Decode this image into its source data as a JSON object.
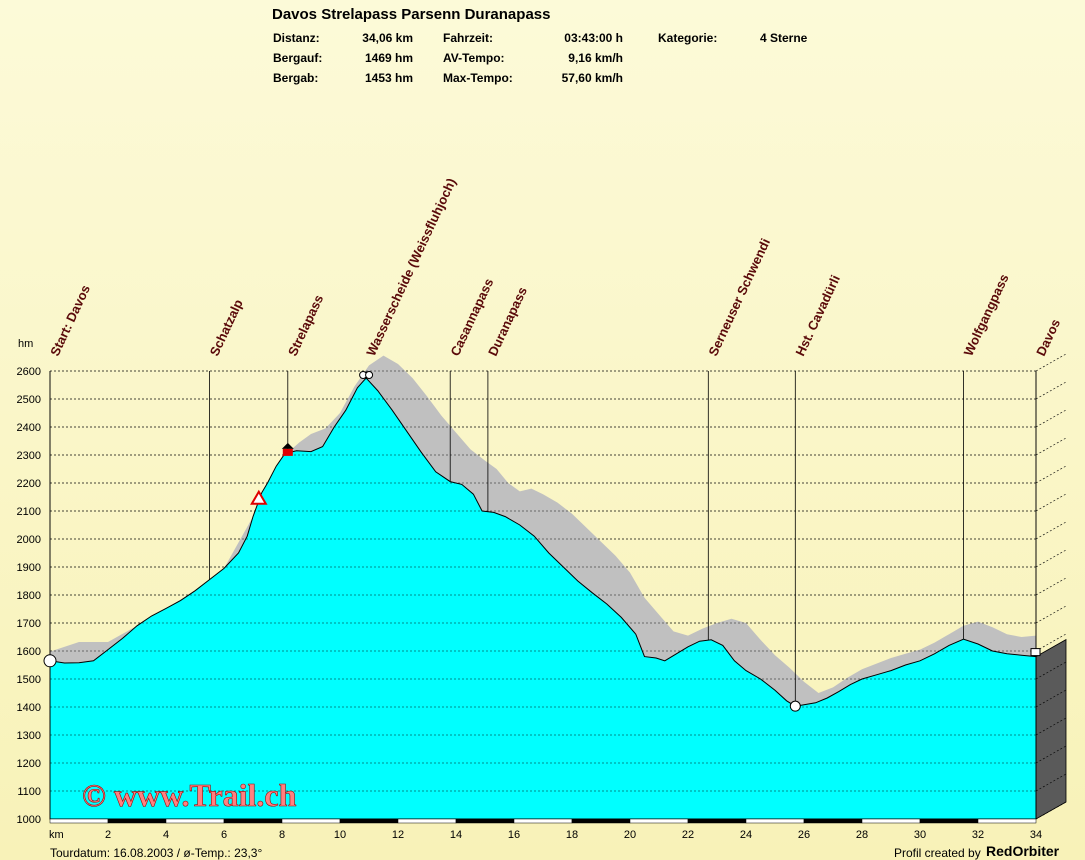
{
  "header": {
    "title": "Davos Strelapass Parsenn Duranapass",
    "stats": [
      {
        "label": "Distanz:",
        "value": "34,06 km"
      },
      {
        "label": "Bergauf:",
        "value": "1469 hm"
      },
      {
        "label": "Bergab:",
        "value": "1453 hm"
      },
      {
        "label": "Fahrzeit:",
        "value": "03:43:00 h"
      },
      {
        "label": "AV-Tempo:",
        "value": "9,16 km/h"
      },
      {
        "label": "Max-Tempo:",
        "value": "57,60 km/h"
      },
      {
        "label": "Kategorie:",
        "value": "4 Sterne"
      }
    ]
  },
  "footer": {
    "tour_info": "Tourdatum: 16.08.2003  /  ø-Temp.: 23,3°",
    "credit_prefix": "Profil created by",
    "credit_brand": "RedOrbiter",
    "watermark": "© www.Trail.ch"
  },
  "colors": {
    "fill": "#00ffff",
    "shadow": "#c0c0c0",
    "waypoint_text": "#5a0a0a",
    "watermark": "#ff8080"
  },
  "chart_data": {
    "type": "area",
    "ylabel": "hm",
    "xlabel": "km",
    "xlim": [
      0,
      34
    ],
    "ylim": [
      1000,
      2600
    ],
    "yticks": [
      1000,
      1100,
      1200,
      1300,
      1400,
      1500,
      1600,
      1700,
      1800,
      1900,
      2000,
      2100,
      2200,
      2300,
      2400,
      2500,
      2600
    ],
    "xticks": [
      2,
      4,
      6,
      8,
      10,
      12,
      14,
      16,
      18,
      20,
      22,
      24,
      26,
      28,
      30,
      32,
      34
    ],
    "grid": true,
    "profile": [
      [
        0,
        1565
      ],
      [
        0.5,
        1557
      ],
      [
        1.0,
        1558
      ],
      [
        1.5,
        1565
      ],
      [
        2.0,
        1605
      ],
      [
        2.5,
        1645
      ],
      [
        3.0,
        1690
      ],
      [
        3.5,
        1725
      ],
      [
        4.0,
        1752
      ],
      [
        4.5,
        1780
      ],
      [
        5.0,
        1815
      ],
      [
        5.5,
        1855
      ],
      [
        6.0,
        1895
      ],
      [
        6.5,
        1950
      ],
      [
        6.8,
        2010
      ],
      [
        7.0,
        2080
      ],
      [
        7.3,
        2165
      ],
      [
        7.5,
        2200
      ],
      [
        7.8,
        2260
      ],
      [
        8.1,
        2305
      ],
      [
        8.5,
        2315
      ],
      [
        9.0,
        2312
      ],
      [
        9.4,
        2330
      ],
      [
        9.8,
        2400
      ],
      [
        10.2,
        2460
      ],
      [
        10.6,
        2540
      ],
      [
        10.9,
        2575
      ],
      [
        11.3,
        2530
      ],
      [
        11.8,
        2460
      ],
      [
        12.3,
        2385
      ],
      [
        12.8,
        2310
      ],
      [
        13.3,
        2240
      ],
      [
        13.8,
        2205
      ],
      [
        14.2,
        2195
      ],
      [
        14.6,
        2160
      ],
      [
        14.9,
        2100
      ],
      [
        15.3,
        2095
      ],
      [
        15.7,
        2080
      ],
      [
        16.2,
        2050
      ],
      [
        16.7,
        2010
      ],
      [
        17.2,
        1950
      ],
      [
        17.7,
        1900
      ],
      [
        18.2,
        1850
      ],
      [
        18.7,
        1808
      ],
      [
        19.2,
        1768
      ],
      [
        19.7,
        1720
      ],
      [
        20.2,
        1660
      ],
      [
        20.5,
        1580
      ],
      [
        20.9,
        1575
      ],
      [
        21.2,
        1565
      ],
      [
        21.6,
        1590
      ],
      [
        22.0,
        1615
      ],
      [
        22.4,
        1635
      ],
      [
        22.8,
        1640
      ],
      [
        23.2,
        1620
      ],
      [
        23.6,
        1565
      ],
      [
        24.0,
        1530
      ],
      [
        24.5,
        1500
      ],
      [
        25.0,
        1460
      ],
      [
        25.4,
        1422
      ],
      [
        25.7,
        1403
      ],
      [
        26.0,
        1408
      ],
      [
        26.4,
        1415
      ],
      [
        26.8,
        1432
      ],
      [
        27.2,
        1455
      ],
      [
        27.6,
        1480
      ],
      [
        28.0,
        1500
      ],
      [
        28.5,
        1515
      ],
      [
        29.0,
        1530
      ],
      [
        29.5,
        1550
      ],
      [
        30.0,
        1565
      ],
      [
        30.5,
        1590
      ],
      [
        31.0,
        1620
      ],
      [
        31.5,
        1642
      ],
      [
        32.0,
        1625
      ],
      [
        32.5,
        1600
      ],
      [
        33.0,
        1590
      ],
      [
        33.5,
        1585
      ],
      [
        34.0,
        1580
      ]
    ],
    "shadow_profile": [
      [
        0,
        1598
      ],
      [
        1.0,
        1632
      ],
      [
        2.0,
        1632
      ],
      [
        3.0,
        1690
      ],
      [
        4.0,
        1752
      ],
      [
        5.0,
        1815
      ],
      [
        6.0,
        1895
      ],
      [
        7.0,
        2080
      ],
      [
        8.0,
        2290
      ],
      [
        8.6,
        2345
      ],
      [
        9.0,
        2375
      ],
      [
        9.5,
        2395
      ],
      [
        10.0,
        2450
      ],
      [
        10.5,
        2545
      ],
      [
        11.0,
        2620
      ],
      [
        11.5,
        2655
      ],
      [
        12.0,
        2625
      ],
      [
        12.5,
        2575
      ],
      [
        13.0,
        2510
      ],
      [
        13.5,
        2440
      ],
      [
        14.0,
        2380
      ],
      [
        14.5,
        2320
      ],
      [
        15.0,
        2280
      ],
      [
        15.4,
        2250
      ],
      [
        15.8,
        2200
      ],
      [
        16.2,
        2170
      ],
      [
        16.6,
        2180
      ],
      [
        17.0,
        2160
      ],
      [
        17.5,
        2130
      ],
      [
        18.0,
        2090
      ],
      [
        18.5,
        2040
      ],
      [
        19.0,
        1990
      ],
      [
        19.5,
        1940
      ],
      [
        20.0,
        1880
      ],
      [
        20.5,
        1790
      ],
      [
        21.0,
        1730
      ],
      [
        21.5,
        1670
      ],
      [
        22.0,
        1655
      ],
      [
        22.5,
        1680
      ],
      [
        23.0,
        1700
      ],
      [
        23.5,
        1715
      ],
      [
        24.0,
        1700
      ],
      [
        24.5,
        1640
      ],
      [
        25.0,
        1585
      ],
      [
        25.5,
        1540
      ],
      [
        26.0,
        1490
      ],
      [
        26.5,
        1450
      ],
      [
        27.0,
        1470
      ],
      [
        27.5,
        1505
      ],
      [
        28.0,
        1535
      ],
      [
        28.5,
        1555
      ],
      [
        29.0,
        1575
      ],
      [
        29.5,
        1590
      ],
      [
        30.0,
        1605
      ],
      [
        30.5,
        1630
      ],
      [
        31.0,
        1660
      ],
      [
        31.5,
        1690
      ],
      [
        32.0,
        1705
      ],
      [
        32.5,
        1685
      ],
      [
        33.0,
        1660
      ],
      [
        33.5,
        1650
      ],
      [
        34.0,
        1655
      ]
    ],
    "waypoints": [
      {
        "name": "Start: Davos",
        "km": 0
      },
      {
        "name": "Schatzalp",
        "km": 5.5
      },
      {
        "name": "Strelapass",
        "km": 8.2
      },
      {
        "name": "Wasserscheide (Weissfluhjoch)",
        "km": 10.9
      },
      {
        "name": "Casannapass",
        "km": 13.8
      },
      {
        "name": "Duranapass",
        "km": 15.1
      },
      {
        "name": "Serneuser Schwendi",
        "km": 22.7
      },
      {
        "name": "Hst. Cavadürli",
        "km": 25.7
      },
      {
        "name": "Wolfgangpass",
        "km": 31.5
      },
      {
        "name": "Davos",
        "km": 34.06
      }
    ]
  }
}
